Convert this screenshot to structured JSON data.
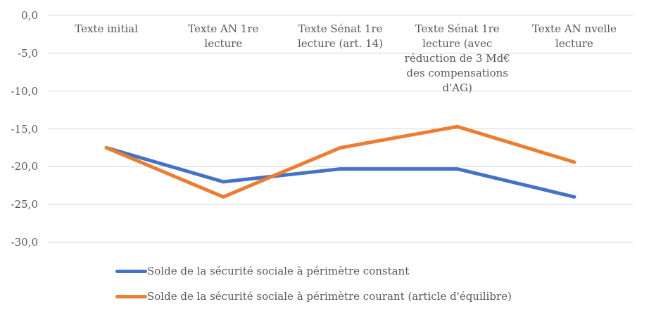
{
  "chart_data": {
    "type": "line",
    "categories": [
      "Texte initial",
      "Texte AN 1re\nlecture",
      "Texte Sénat 1re\nlecture (art. 14)",
      "Texte Sénat 1re\nlecture (avec\nréduction de 3 Md€\ndes compensations\nd'AG)",
      "Texte AN nvelle\nlecture"
    ],
    "series": [
      {
        "name": "Solde de la sécurité sociale à périmètre constant",
        "color": "#4472C4",
        "values": [
          -17.5,
          -22.0,
          -20.3,
          -20.3,
          -24.0
        ]
      },
      {
        "name": "Solde de la sécurité sociale à périmètre courant (article d'équilibre)",
        "color": "#ED7D31",
        "values": [
          -17.5,
          -24.0,
          -17.5,
          -14.7,
          -19.4
        ]
      }
    ],
    "yticks": [
      {
        "value": 0,
        "label": "0,0"
      },
      {
        "value": -5,
        "label": "-5,0"
      },
      {
        "value": -10,
        "label": "-10,0"
      },
      {
        "value": -15,
        "label": "-15,0"
      },
      {
        "value": -20,
        "label": "-20,0"
      },
      {
        "value": -25,
        "label": "-25,0"
      },
      {
        "value": -30,
        "label": "-30,0"
      }
    ],
    "ylim": [
      -30,
      0
    ],
    "xlabel": "",
    "ylabel": "",
    "title": "",
    "grid": true,
    "legend_position": "bottom-left",
    "colors": {
      "text": "#595959",
      "gridline": "#D9D9D9",
      "background": "#FFFFFF"
    }
  }
}
